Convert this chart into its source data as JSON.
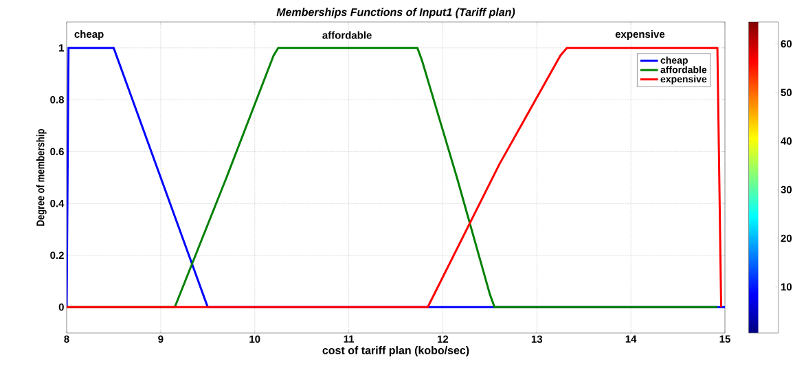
{
  "chart_data": {
    "type": "line",
    "title": "Memberships Functions of Input1 (Tariff plan)",
    "xlabel": "cost of tariff plan (kobo/sec)",
    "ylabel": "Degree of membership",
    "xlim": [
      8,
      15
    ],
    "ylim": [
      -0.1,
      1.1
    ],
    "xticks": [
      8,
      9,
      10,
      11,
      12,
      13,
      14,
      15
    ],
    "yticks": [
      0,
      0.2,
      0.4,
      0.6,
      0.8,
      1
    ],
    "series": [
      {
        "name": "cheap",
        "color": "#0000ff",
        "x": [
          8,
          8.02,
          8.5,
          8.55,
          8.7,
          8.9,
          9.1,
          9.3,
          9.45,
          9.5,
          15
        ],
        "values": [
          0,
          1,
          1,
          0.95,
          0.8,
          0.6,
          0.4,
          0.2,
          0.05,
          0,
          0
        ]
      },
      {
        "name": "affordable",
        "color": "#008000",
        "x": [
          8,
          9.15,
          9.7,
          10.2,
          10.25,
          11.73,
          11.78,
          12.15,
          12.5,
          12.55,
          14.92
        ],
        "values": [
          0,
          0,
          0.5,
          0.97,
          1,
          1,
          0.95,
          0.5,
          0.05,
          0,
          0
        ]
      },
      {
        "name": "expensive",
        "color": "#ff0000",
        "x": [
          8,
          11.84,
          12.6,
          13.25,
          13.32,
          14.92,
          14.96
        ],
        "values": [
          0,
          0,
          0.55,
          0.97,
          1,
          1,
          0
        ]
      }
    ],
    "annotations": [
      "cheap",
      "affordable",
      "expensive"
    ],
    "grid": true,
    "legend": "top right",
    "clim": [
      0.5,
      64.5
    ],
    "cticks": [
      10,
      20,
      30,
      40,
      50,
      60
    ]
  }
}
